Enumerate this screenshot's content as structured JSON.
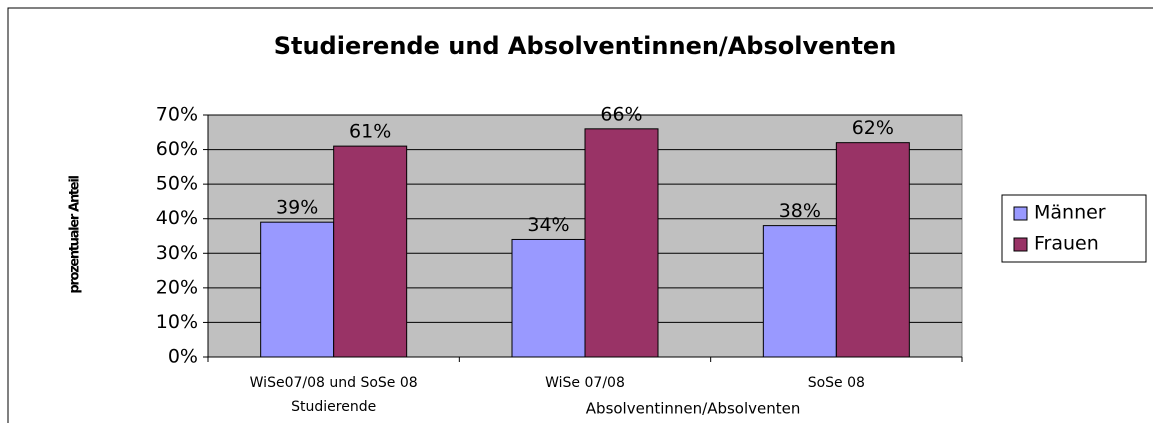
{
  "chart_data": {
    "type": "bar",
    "title": "Studierende und Absolventinnen/Absolventen",
    "y_label": "prozentualer Anteil",
    "categories": [
      "WiSe07/08 und SoSe 08",
      "WiSe 07/08",
      "SoSe 08"
    ],
    "group_labels": [
      "Studierende",
      "Absolventinnen/Absolventen"
    ],
    "series": [
      {
        "name": "Männer",
        "color": "#9999ff",
        "values": [
          39,
          34,
          38
        ],
        "value_labels": [
          "39%",
          "34%",
          "38%"
        ]
      },
      {
        "name": "Frauen",
        "color": "#993366",
        "values": [
          61,
          66,
          62
        ],
        "value_labels": [
          "61%",
          "66%",
          "62%"
        ]
      }
    ],
    "ylim": [
      0,
      70
    ],
    "yticks": [
      {
        "value": 0,
        "label": "0%"
      },
      {
        "value": 10,
        "label": "10%"
      },
      {
        "value": 20,
        "label": "20%"
      },
      {
        "value": 30,
        "label": "30%"
      },
      {
        "value": 40,
        "label": "40%"
      },
      {
        "value": 50,
        "label": "50%"
      },
      {
        "value": 60,
        "label": "60%"
      },
      {
        "value": 70,
        "label": "70%"
      }
    ],
    "grid": true,
    "legend": "right"
  }
}
